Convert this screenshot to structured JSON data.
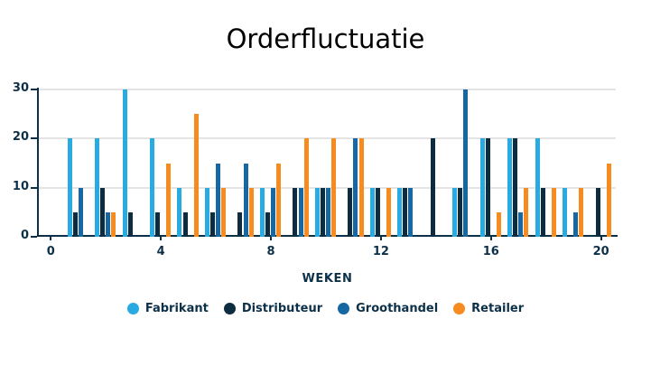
{
  "chart_data": {
    "type": "bar",
    "title": "Orderfluctuatie",
    "xlabel": "WEKEN",
    "ylabel": "",
    "ylim": [
      0,
      30
    ],
    "yticks": [
      0,
      10,
      20,
      30
    ],
    "xticks": [
      0,
      4,
      8,
      12,
      16,
      20
    ],
    "x_range_weeks": [
      1,
      20
    ],
    "grid": true,
    "legend_position": "bottom",
    "weeks": [
      1,
      2,
      3,
      4,
      5,
      6,
      7,
      8,
      9,
      10,
      11,
      12,
      13,
      14,
      15,
      16,
      17,
      18,
      19,
      20
    ],
    "series": [
      {
        "name": "Fabrikant",
        "color": "#29ABE2",
        "values": [
          20,
          20,
          30,
          20,
          10,
          10,
          0,
          10,
          0,
          10,
          0,
          10,
          10,
          0,
          10,
          20,
          20,
          20,
          10,
          0
        ]
      },
      {
        "name": "Distributeur",
        "color": "#0D2C3F",
        "values": [
          5,
          10,
          5,
          5,
          5,
          5,
          5,
          5,
          10,
          10,
          10,
          10,
          10,
          20,
          10,
          20,
          20,
          10,
          0,
          10
        ]
      },
      {
        "name": "Groothandel",
        "color": "#1768A2",
        "values": [
          10,
          5,
          0,
          0,
          0,
          15,
          15,
          10,
          10,
          10,
          20,
          0,
          10,
          0,
          30,
          0,
          5,
          0,
          5,
          0
        ]
      },
      {
        "name": "Retailer",
        "color": "#F68B1F",
        "values": [
          0,
          5,
          0,
          15,
          25,
          10,
          10,
          15,
          20,
          20,
          20,
          10,
          0,
          0,
          0,
          5,
          10,
          10,
          10,
          15
        ]
      }
    ],
    "colors": {
      "axis": "#0D3049",
      "grid": "#E4E4E4",
      "background": "#FFFFFF",
      "title_text": "#000000"
    }
  }
}
